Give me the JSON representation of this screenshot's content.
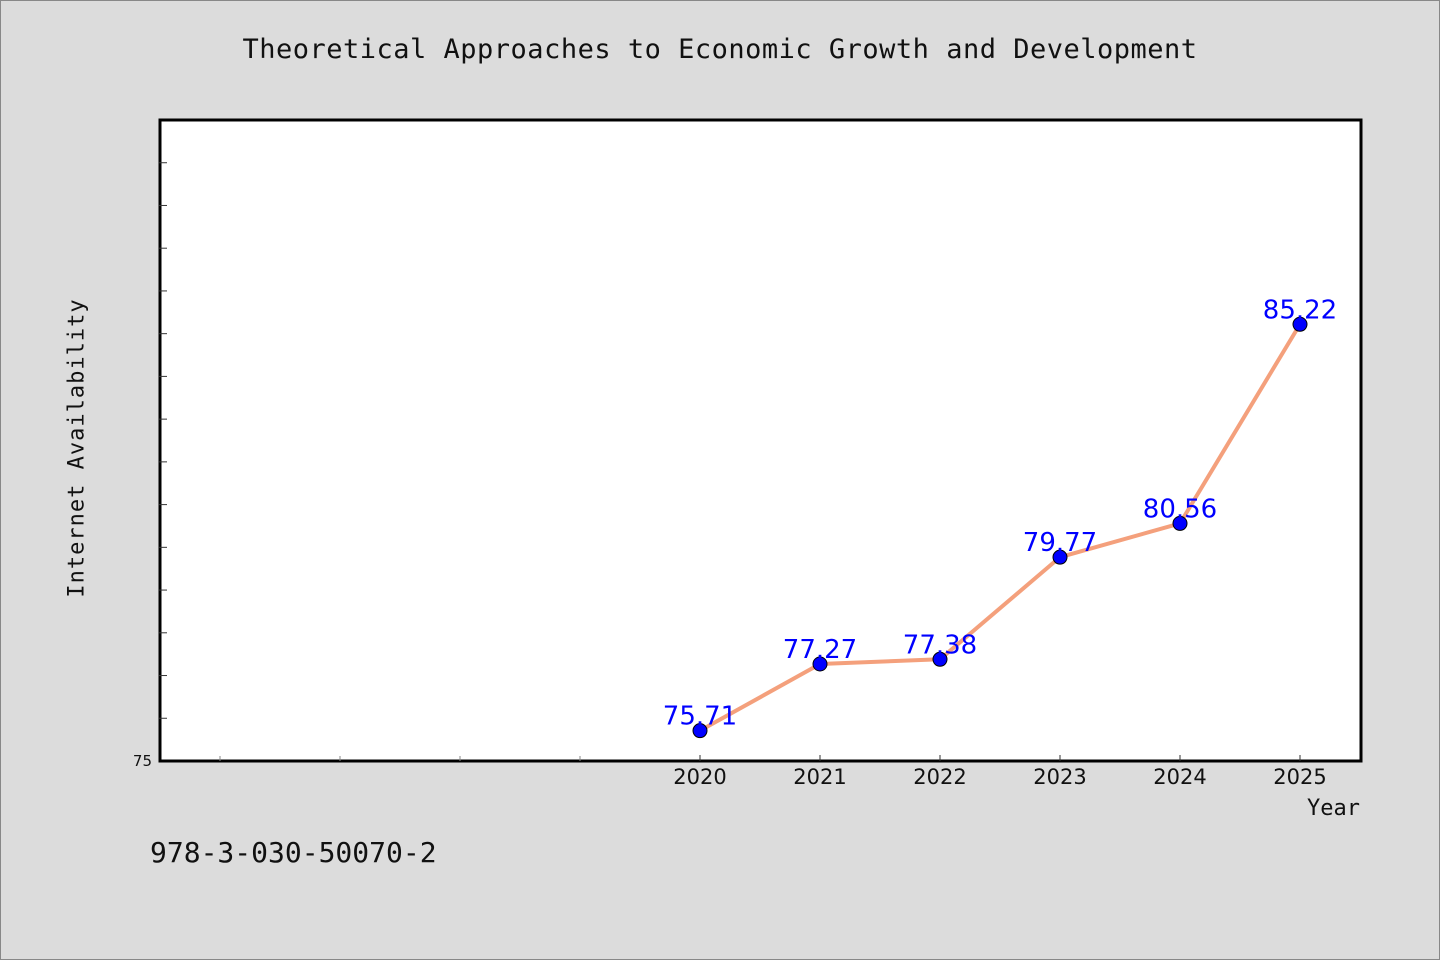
{
  "chart_data": {
    "type": "line",
    "title": "Theoretical Approaches to Economic Growth and Development",
    "xlabel": "Year",
    "ylabel": "Internet Availability",
    "categories": [
      "2020",
      "2021",
      "2022",
      "2023",
      "2024",
      "2025"
    ],
    "x_slots": 10,
    "values": [
      75.71,
      77.27,
      77.38,
      79.77,
      80.56,
      85.22
    ],
    "data_labels": [
      "75.71",
      "77.27",
      "77.38",
      "79.77",
      "80.56",
      "85.22"
    ],
    "ylim": [
      75,
      90
    ],
    "y_tick_labels": [
      "75"
    ],
    "y_minor_ticks": 14,
    "grid": false,
    "legend": "none",
    "line_color": "#f4a07c",
    "marker_color": "#0000ff",
    "label_color": "#0000ff",
    "plot_background": "#ffffff",
    "figure_background": "#dcdcdc"
  },
  "footer": {
    "text": "978-3-030-50070-2"
  }
}
